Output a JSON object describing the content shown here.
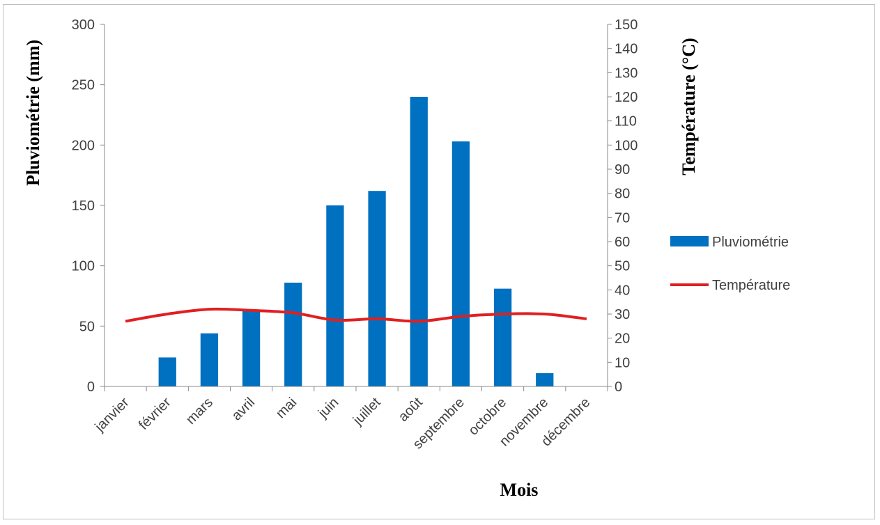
{
  "chart_data": {
    "type": "bar",
    "categories": [
      "janvier",
      "février",
      "mars",
      "avril",
      "mai",
      "juin",
      "juillet",
      "août",
      "septembre",
      "octobre",
      "novembre",
      "décembre"
    ],
    "series": [
      {
        "name": "Pluviométrie",
        "type": "bar",
        "axis": "left",
        "color": "#0070c0",
        "values": [
          0,
          24,
          44,
          63,
          86,
          150,
          162,
          240,
          203,
          81,
          11,
          0
        ]
      },
      {
        "name": "Température",
        "type": "line",
        "axis": "right",
        "color": "#e02020",
        "values": [
          27,
          30,
          32,
          31.5,
          30.5,
          27.5,
          28,
          27,
          29,
          30,
          30,
          28
        ]
      }
    ],
    "xlabel": "Mois",
    "ylabel": "Pluviométrie  (mm)",
    "y2label": "Température  (°C)",
    "ylim": [
      0,
      300
    ],
    "y2lim": [
      0,
      150
    ],
    "yticks": [
      0,
      50,
      100,
      150,
      200,
      250,
      300
    ],
    "y2ticks": [
      0,
      10,
      20,
      30,
      40,
      50,
      60,
      70,
      80,
      90,
      100,
      110,
      120,
      130,
      140,
      150
    ],
    "grid": false,
    "legend_position": "right"
  }
}
